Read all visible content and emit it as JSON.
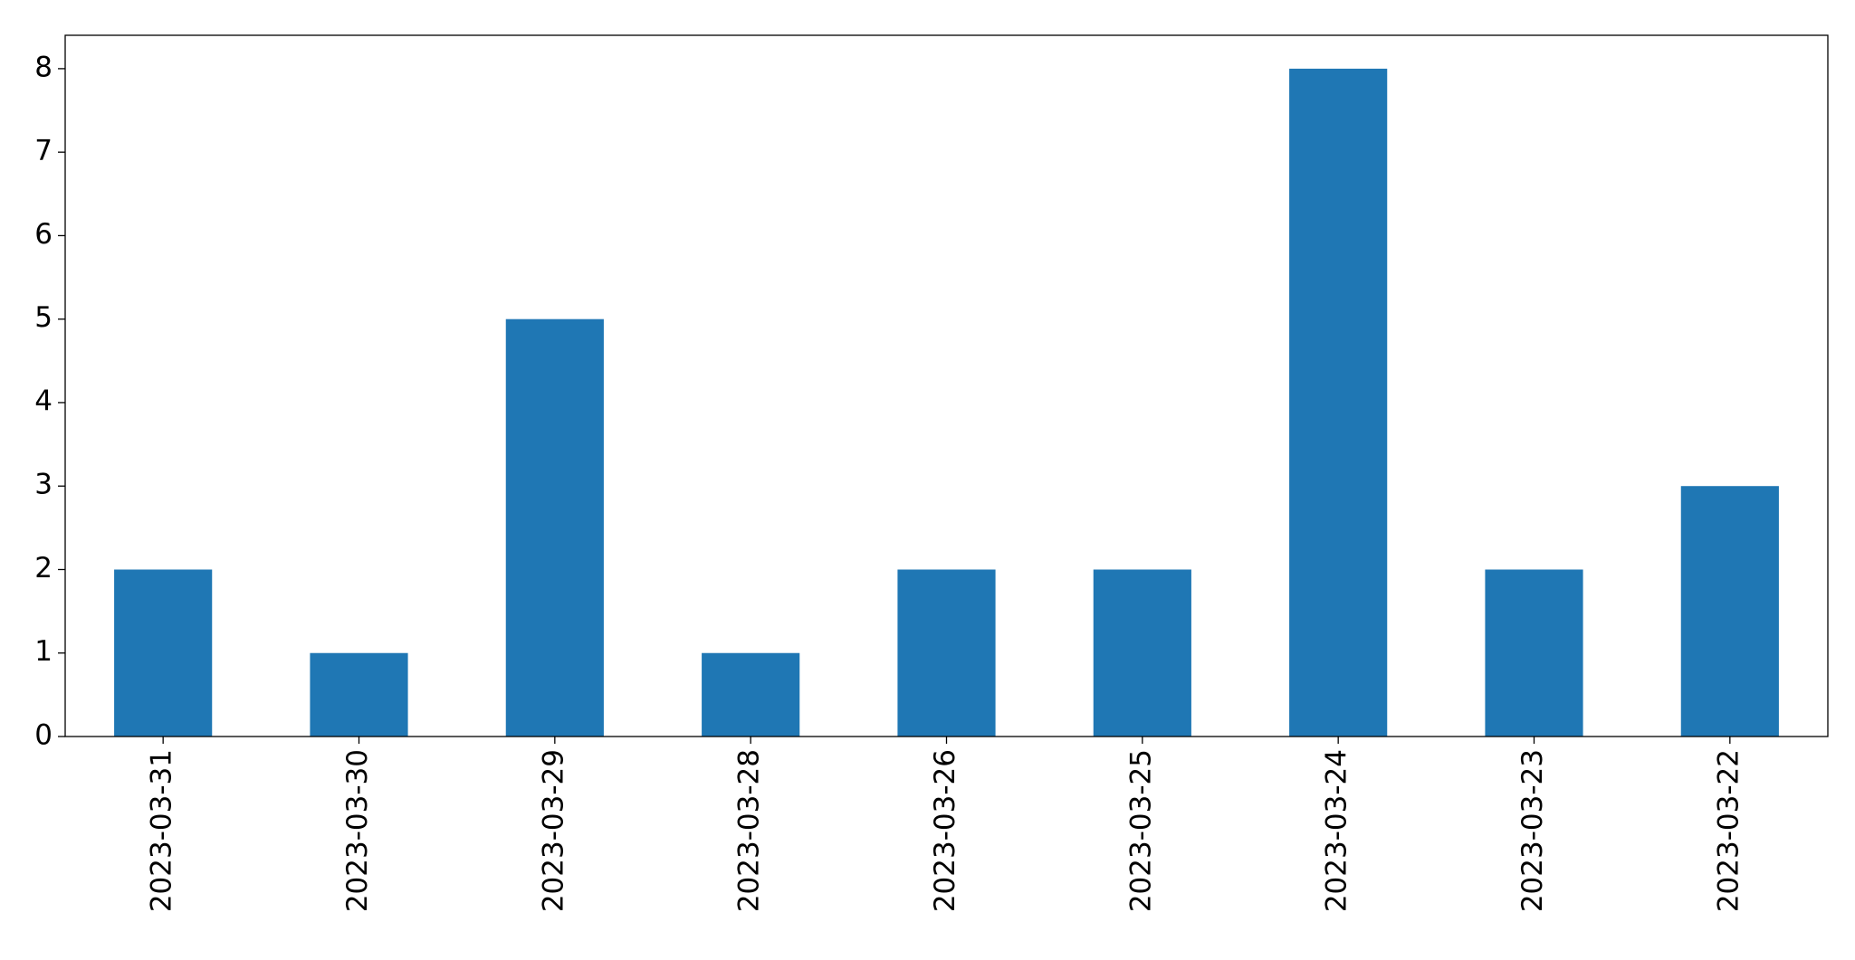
{
  "chart_data": {
    "type": "bar",
    "categories": [
      "2023-03-31",
      "2023-03-30",
      "2023-03-29",
      "2023-03-28",
      "2023-03-26",
      "2023-03-25",
      "2023-03-24",
      "2023-03-23",
      "2023-03-22"
    ],
    "values": [
      2,
      1,
      5,
      1,
      2,
      2,
      8,
      2,
      3
    ],
    "color": "#1f77b4",
    "ylim": [
      0,
      8.4
    ],
    "yticks": [
      0,
      1,
      2,
      3,
      4,
      5,
      6,
      7,
      8
    ],
    "grid": false
  }
}
